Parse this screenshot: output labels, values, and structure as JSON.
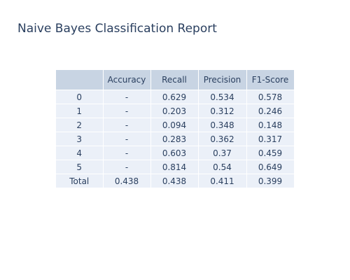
{
  "chart_data": {
    "type": "table",
    "title": "Naive Bayes Classification Report",
    "columns": [
      "",
      "Accuracy",
      "Recall",
      "Precision",
      "F1-Score"
    ],
    "rows": [
      [
        "0",
        "-",
        "0.629",
        "0.534",
        "0.578"
      ],
      [
        "1",
        "-",
        "0.203",
        "0.312",
        "0.246"
      ],
      [
        "2",
        "-",
        "0.094",
        "0.348",
        "0.148"
      ],
      [
        "3",
        "-",
        "0.283",
        "0.362",
        "0.317"
      ],
      [
        "4",
        "-",
        "0.603",
        "0.37",
        "0.459"
      ],
      [
        "5",
        "-",
        "0.814",
        "0.54",
        "0.649"
      ],
      [
        "Total",
        "0.438",
        "0.438",
        "0.411",
        "0.399"
      ]
    ],
    "colors": {
      "header_fill": "#c8d4e3",
      "cell_fill": "#ebf0f8",
      "text": "#2a3f5f"
    }
  }
}
